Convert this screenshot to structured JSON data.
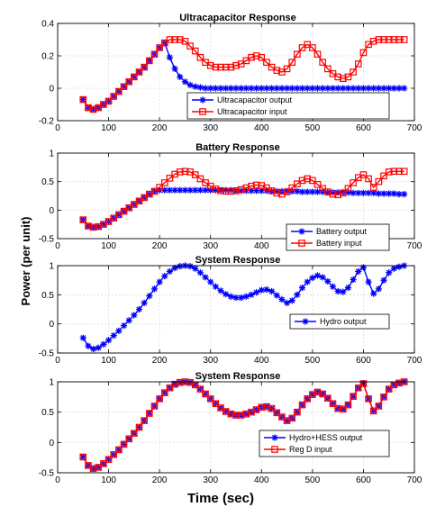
{
  "figure": {
    "xlabel": "Time (sec)",
    "ylabel": "Power (per unit)"
  },
  "chart_data": [
    {
      "type": "line",
      "title": "Ultracapacitor Response",
      "xlim": [
        0,
        700
      ],
      "ylim": [
        -0.2,
        0.4
      ],
      "xticks": [
        "0",
        "100",
        "200",
        "300",
        "400",
        "500",
        "600",
        "700"
      ],
      "yticks": [
        "-0.2",
        "0",
        "0.2",
        "0.4"
      ],
      "grid": true,
      "legend_position": "bottom-right",
      "x": [
        50,
        60,
        70,
        80,
        90,
        100,
        110,
        120,
        130,
        140,
        150,
        160,
        170,
        180,
        190,
        200,
        210,
        220,
        230,
        240,
        250,
        260,
        270,
        280,
        290,
        300,
        310,
        320,
        330,
        340,
        350,
        360,
        370,
        380,
        390,
        400,
        410,
        420,
        430,
        440,
        450,
        460,
        470,
        480,
        490,
        500,
        510,
        520,
        530,
        540,
        550,
        560,
        570,
        580,
        590,
        600,
        610,
        620,
        630,
        640,
        650,
        660,
        670,
        680
      ],
      "series": [
        {
          "name": "Ultracapacitor output",
          "color": "#0000ff",
          "marker": "star",
          "values": [
            -0.07,
            -0.12,
            -0.13,
            -0.12,
            -0.1,
            -0.08,
            -0.05,
            -0.02,
            0.01,
            0.04,
            0.07,
            0.1,
            0.13,
            0.17,
            0.21,
            0.25,
            0.28,
            0.19,
            0.12,
            0.07,
            0.04,
            0.02,
            0.01,
            0.005,
            0,
            0,
            0,
            0,
            0,
            0,
            0,
            0,
            0,
            0,
            0,
            0,
            0,
            0,
            0,
            0,
            0,
            0,
            0,
            0,
            0,
            0,
            0,
            0,
            0,
            0,
            0,
            0,
            0,
            0,
            0,
            0,
            0,
            0,
            0,
            0,
            0,
            0,
            0,
            0
          ]
        },
        {
          "name": "Ultracapacitor input",
          "color": "#ff0000",
          "marker": "square",
          "values": [
            -0.07,
            -0.12,
            -0.13,
            -0.12,
            -0.1,
            -0.08,
            -0.05,
            -0.02,
            0.01,
            0.04,
            0.07,
            0.1,
            0.13,
            0.17,
            0.21,
            0.25,
            0.28,
            0.3,
            0.3,
            0.3,
            0.29,
            0.26,
            0.23,
            0.19,
            0.16,
            0.14,
            0.13,
            0.13,
            0.13,
            0.13,
            0.14,
            0.15,
            0.17,
            0.19,
            0.2,
            0.19,
            0.16,
            0.13,
            0.11,
            0.1,
            0.12,
            0.16,
            0.21,
            0.25,
            0.27,
            0.25,
            0.21,
            0.16,
            0.12,
            0.09,
            0.07,
            0.06,
            0.07,
            0.1,
            0.15,
            0.22,
            0.27,
            0.29,
            0.3,
            0.3,
            0.3,
            0.3,
            0.3,
            0.3
          ]
        }
      ]
    },
    {
      "type": "line",
      "title": "Battery Response",
      "xlim": [
        0,
        700
      ],
      "ylim": [
        -0.5,
        1
      ],
      "xticks": [
        "0",
        "100",
        "200",
        "300",
        "400",
        "500",
        "600",
        "700"
      ],
      "yticks": [
        "-0.5",
        "0",
        "0.5",
        "1"
      ],
      "grid": true,
      "legend_position": "bottom-right",
      "x": [
        50,
        60,
        70,
        80,
        90,
        100,
        110,
        120,
        130,
        140,
        150,
        160,
        170,
        180,
        190,
        200,
        210,
        220,
        230,
        240,
        250,
        260,
        270,
        280,
        290,
        300,
        310,
        320,
        330,
        340,
        350,
        360,
        370,
        380,
        390,
        400,
        410,
        420,
        430,
        440,
        450,
        460,
        470,
        480,
        490,
        500,
        510,
        520,
        530,
        540,
        550,
        560,
        570,
        580,
        590,
        600,
        610,
        620,
        630,
        640,
        650,
        660,
        670,
        680
      ],
      "series": [
        {
          "name": "Battery output",
          "color": "#0000ff",
          "marker": "star",
          "values": [
            -0.17,
            -0.28,
            -0.3,
            -0.29,
            -0.25,
            -0.2,
            -0.14,
            -0.08,
            -0.02,
            0.04,
            0.1,
            0.16,
            0.22,
            0.28,
            0.33,
            0.35,
            0.35,
            0.35,
            0.35,
            0.35,
            0.35,
            0.35,
            0.35,
            0.35,
            0.35,
            0.35,
            0.35,
            0.35,
            0.35,
            0.35,
            0.34,
            0.34,
            0.34,
            0.34,
            0.34,
            0.34,
            0.34,
            0.33,
            0.33,
            0.33,
            0.33,
            0.33,
            0.33,
            0.32,
            0.32,
            0.32,
            0.32,
            0.32,
            0.31,
            0.31,
            0.31,
            0.31,
            0.31,
            0.3,
            0.3,
            0.3,
            0.3,
            0.3,
            0.29,
            0.29,
            0.29,
            0.29,
            0.28,
            0.28
          ]
        },
        {
          "name": "Battery input",
          "color": "#ff0000",
          "marker": "square",
          "values": [
            -0.17,
            -0.28,
            -0.3,
            -0.29,
            -0.25,
            -0.2,
            -0.14,
            -0.08,
            -0.02,
            0.04,
            0.1,
            0.16,
            0.22,
            0.28,
            0.33,
            0.4,
            0.48,
            0.56,
            0.63,
            0.67,
            0.68,
            0.67,
            0.62,
            0.55,
            0.48,
            0.42,
            0.37,
            0.34,
            0.33,
            0.33,
            0.34,
            0.36,
            0.39,
            0.42,
            0.44,
            0.43,
            0.39,
            0.34,
            0.3,
            0.28,
            0.32,
            0.39,
            0.46,
            0.52,
            0.55,
            0.52,
            0.45,
            0.38,
            0.32,
            0.28,
            0.27,
            0.3,
            0.38,
            0.48,
            0.57,
            0.62,
            0.55,
            0.4,
            0.5,
            0.6,
            0.67,
            0.68,
            0.68,
            0.68
          ]
        }
      ]
    },
    {
      "type": "line",
      "title": "System Response",
      "xlim": [
        0,
        700
      ],
      "ylim": [
        -0.5,
        1
      ],
      "xticks": [
        "0",
        "100",
        "200",
        "300",
        "400",
        "500",
        "600",
        "700"
      ],
      "yticks": [
        "-0.5",
        "0",
        "0.5",
        "1"
      ],
      "grid": true,
      "legend_position": "bottom-right",
      "x": [
        50,
        60,
        70,
        80,
        90,
        100,
        110,
        120,
        130,
        140,
        150,
        160,
        170,
        180,
        190,
        200,
        210,
        220,
        230,
        240,
        250,
        260,
        270,
        280,
        290,
        300,
        310,
        320,
        330,
        340,
        350,
        360,
        370,
        380,
        390,
        400,
        410,
        420,
        430,
        440,
        450,
        460,
        470,
        480,
        490,
        500,
        510,
        520,
        530,
        540,
        550,
        560,
        570,
        580,
        590,
        600,
        610,
        620,
        630,
        640,
        650,
        660,
        670,
        680
      ],
      "series": [
        {
          "name": "Hydro output",
          "color": "#0000ff",
          "marker": "star",
          "values": [
            -0.24,
            -0.38,
            -0.43,
            -0.41,
            -0.35,
            -0.28,
            -0.2,
            -0.12,
            -0.03,
            0.06,
            0.15,
            0.25,
            0.36,
            0.48,
            0.6,
            0.72,
            0.82,
            0.9,
            0.96,
            0.99,
            1.0,
            0.99,
            0.95,
            0.88,
            0.8,
            0.72,
            0.64,
            0.57,
            0.51,
            0.47,
            0.45,
            0.45,
            0.47,
            0.5,
            0.54,
            0.58,
            0.59,
            0.56,
            0.49,
            0.42,
            0.36,
            0.4,
            0.5,
            0.62,
            0.72,
            0.79,
            0.83,
            0.8,
            0.73,
            0.64,
            0.56,
            0.55,
            0.62,
            0.76,
            0.9,
            0.97,
            0.72,
            0.52,
            0.6,
            0.75,
            0.88,
            0.95,
            0.98,
            1.0
          ]
        }
      ]
    },
    {
      "type": "line",
      "title": "System Response",
      "xlim": [
        0,
        700
      ],
      "ylim": [
        -0.5,
        1
      ],
      "xticks": [
        "0",
        "100",
        "200",
        "300",
        "400",
        "500",
        "600",
        "700"
      ],
      "yticks": [
        "-0.5",
        "0",
        "0.5",
        "1"
      ],
      "grid": true,
      "legend_position": "bottom-right",
      "x": [
        50,
        60,
        70,
        80,
        90,
        100,
        110,
        120,
        130,
        140,
        150,
        160,
        170,
        180,
        190,
        200,
        210,
        220,
        230,
        240,
        250,
        260,
        270,
        280,
        290,
        300,
        310,
        320,
        330,
        340,
        350,
        360,
        370,
        380,
        390,
        400,
        410,
        420,
        430,
        440,
        450,
        460,
        470,
        480,
        490,
        500,
        510,
        520,
        530,
        540,
        550,
        560,
        570,
        580,
        590,
        600,
        610,
        620,
        630,
        640,
        650,
        660,
        670,
        680
      ],
      "series": [
        {
          "name": "Hydro+HESS output",
          "color": "#0000ff",
          "marker": "star",
          "values": [
            -0.24,
            -0.38,
            -0.43,
            -0.41,
            -0.35,
            -0.28,
            -0.2,
            -0.12,
            -0.03,
            0.06,
            0.15,
            0.25,
            0.36,
            0.48,
            0.6,
            0.72,
            0.82,
            0.9,
            0.96,
            0.99,
            1.0,
            0.99,
            0.95,
            0.88,
            0.8,
            0.72,
            0.64,
            0.57,
            0.51,
            0.47,
            0.45,
            0.45,
            0.47,
            0.5,
            0.54,
            0.58,
            0.59,
            0.56,
            0.49,
            0.42,
            0.36,
            0.4,
            0.5,
            0.62,
            0.72,
            0.79,
            0.83,
            0.8,
            0.73,
            0.64,
            0.56,
            0.55,
            0.62,
            0.76,
            0.9,
            0.97,
            0.72,
            0.52,
            0.6,
            0.75,
            0.88,
            0.95,
            0.98,
            1.0
          ]
        },
        {
          "name": "Reg D input",
          "color": "#ff0000",
          "marker": "square",
          "values": [
            -0.24,
            -0.38,
            -0.43,
            -0.41,
            -0.35,
            -0.28,
            -0.2,
            -0.12,
            -0.03,
            0.06,
            0.15,
            0.25,
            0.36,
            0.48,
            0.6,
            0.72,
            0.82,
            0.9,
            0.96,
            0.99,
            1.0,
            0.99,
            0.95,
            0.88,
            0.8,
            0.72,
            0.64,
            0.57,
            0.51,
            0.47,
            0.45,
            0.45,
            0.47,
            0.5,
            0.54,
            0.58,
            0.59,
            0.56,
            0.49,
            0.42,
            0.36,
            0.4,
            0.5,
            0.62,
            0.72,
            0.79,
            0.83,
            0.8,
            0.73,
            0.64,
            0.56,
            0.55,
            0.62,
            0.76,
            0.9,
            0.97,
            0.72,
            0.52,
            0.6,
            0.75,
            0.88,
            0.95,
            0.98,
            1.0
          ]
        }
      ]
    }
  ]
}
